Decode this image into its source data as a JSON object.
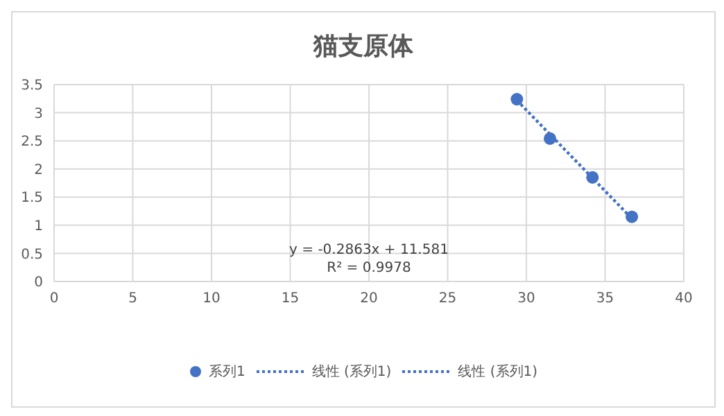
{
  "chart_data": {
    "type": "scatter",
    "title": "猫支原体",
    "series": [
      {
        "name": "系列1",
        "color": "#4472c4",
        "marker": "circle",
        "x": [
          29.4,
          31.5,
          34.2,
          36.7
        ],
        "values": [
          3.24,
          2.54,
          1.85,
          1.15
        ]
      },
      {
        "name": "线性 (系列1)",
        "type": "line",
        "color": "#4472c4",
        "line_style": "dotted",
        "marker": "none",
        "x": [
          29.4,
          36.7
        ],
        "values": [
          3.22,
          1.12
        ]
      },
      {
        "name": "线性 (系列1)",
        "type": "line",
        "color": "#4472c4",
        "line_style": "dotted",
        "marker": "none",
        "x": [
          29.4,
          36.7
        ],
        "values": [
          3.22,
          1.12
        ]
      }
    ],
    "xlim": [
      0,
      40
    ],
    "xticks": [
      0,
      5,
      10,
      15,
      20,
      25,
      30,
      35,
      40
    ],
    "ylim": [
      0,
      3.5
    ],
    "yticks": [
      0,
      0.5,
      1,
      1.5,
      2,
      2.5,
      3,
      3.5
    ],
    "grid": true,
    "legend": "bottom",
    "annotations": [
      "y = -0.2863x + 11.581",
      "R² = 0.9978"
    ]
  }
}
